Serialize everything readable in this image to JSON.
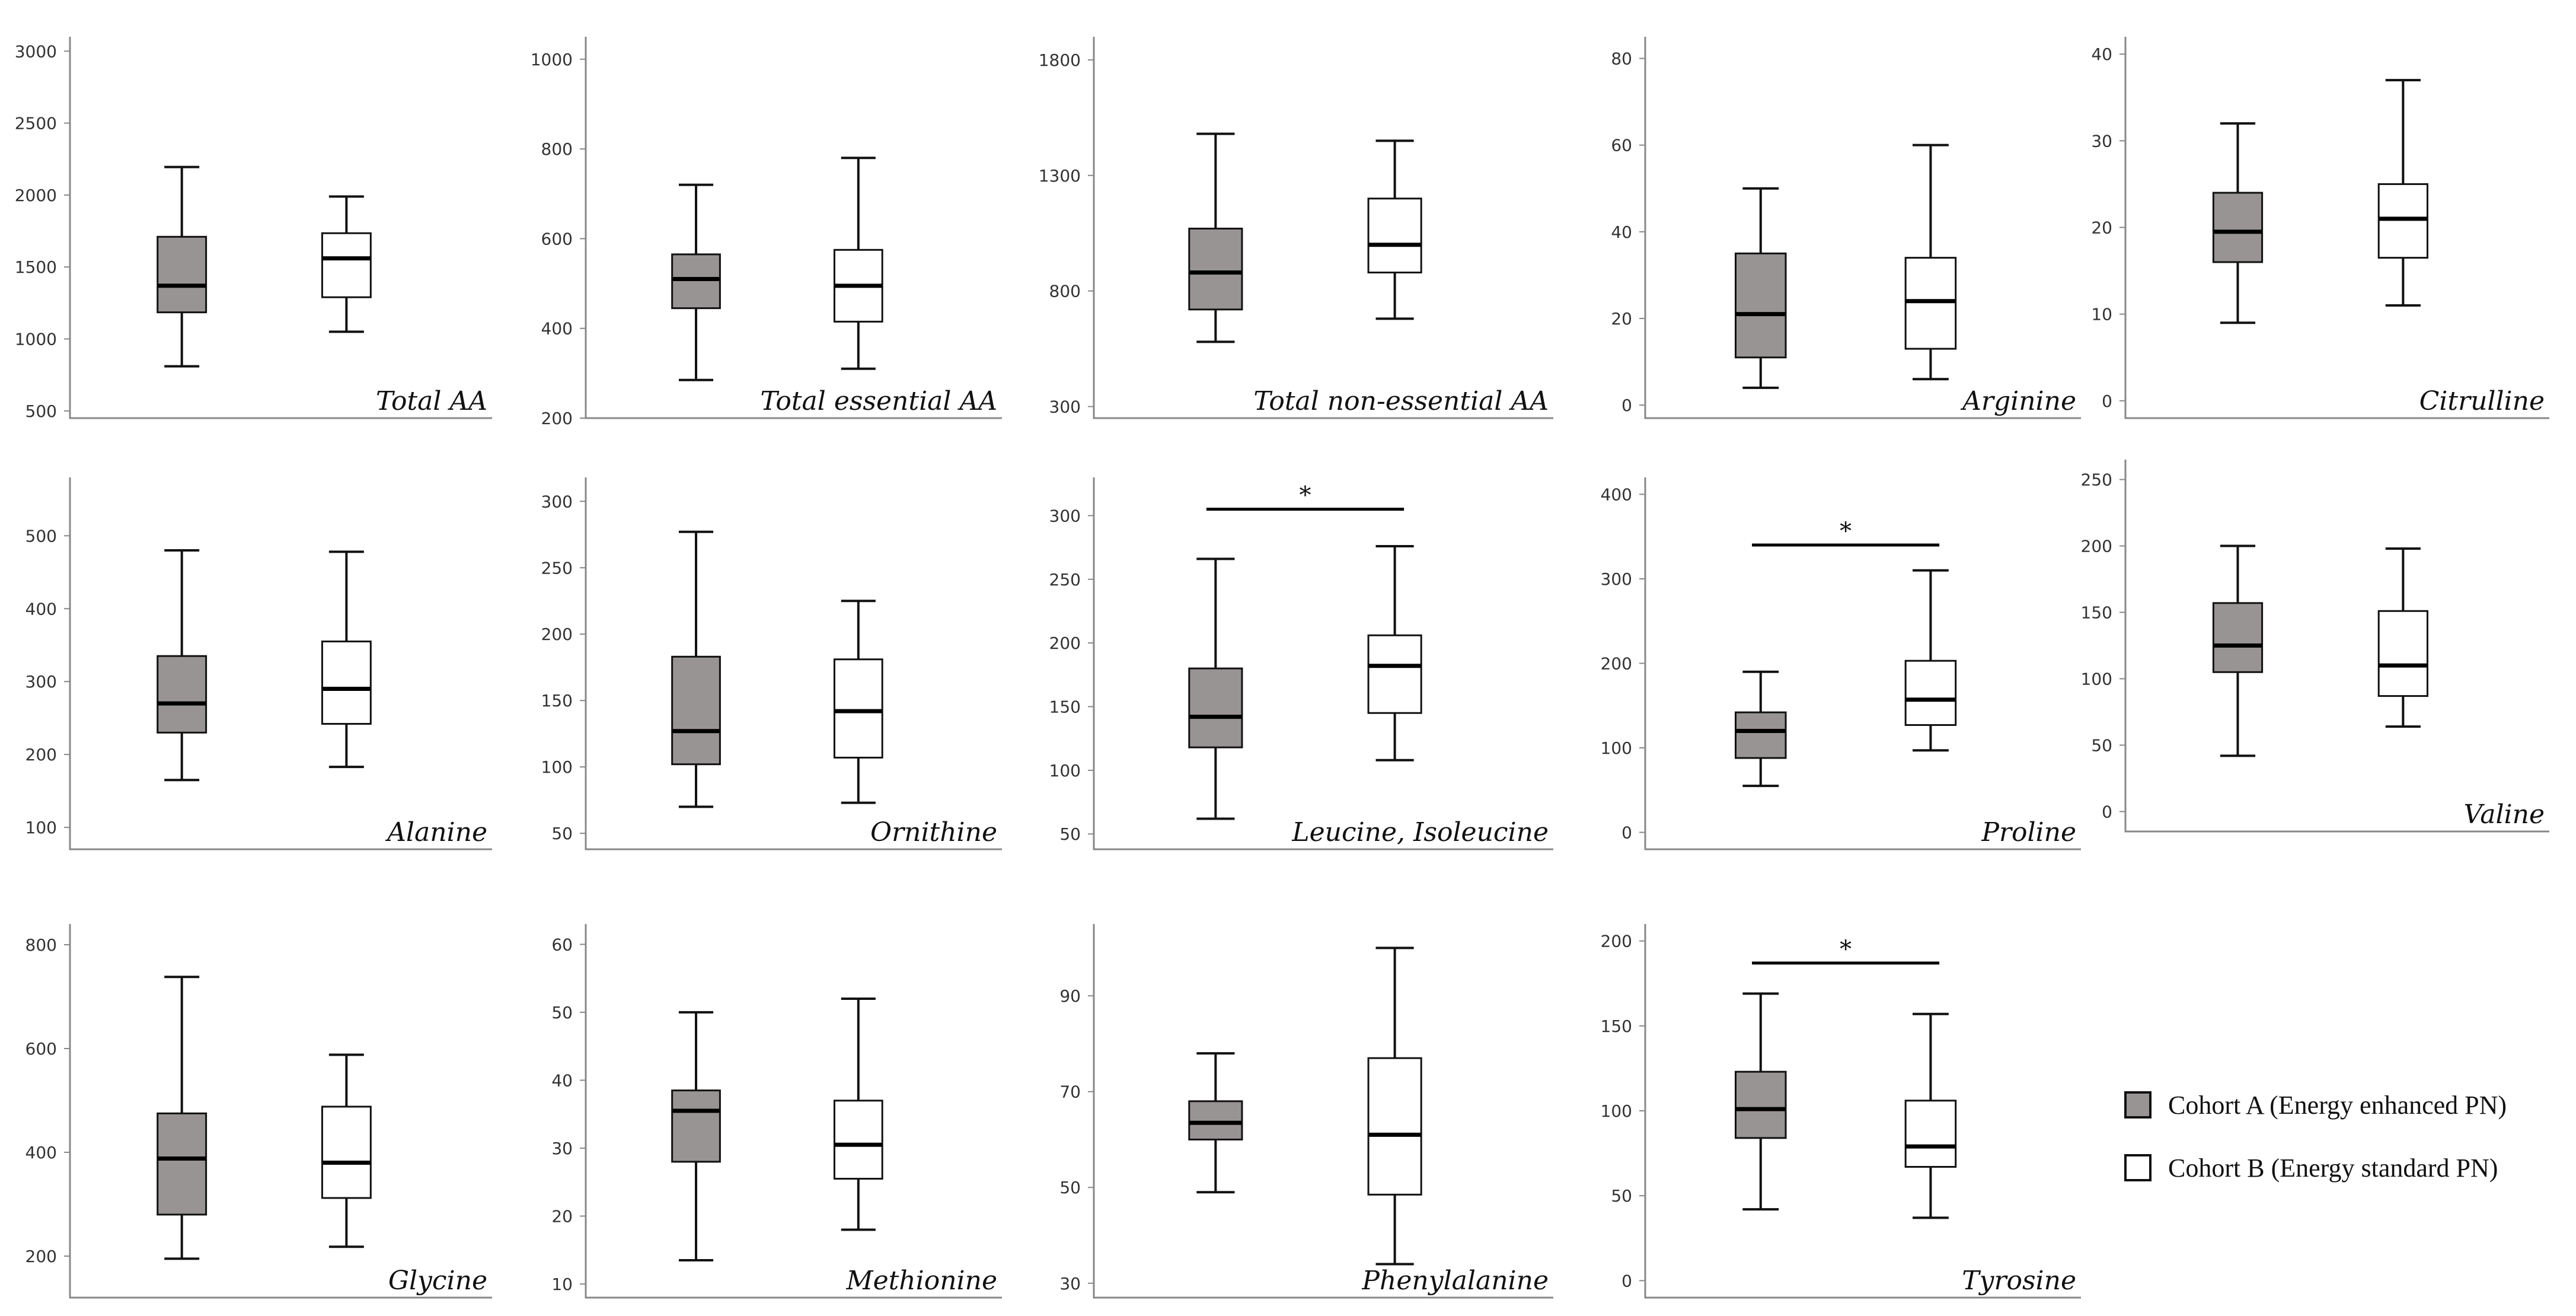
{
  "legend": {
    "items": [
      {
        "label": "Cohort A (Energy enhanced PN)",
        "color": "#999494"
      },
      {
        "label": "Cohort B (Energy standard  PN)",
        "color": "#ffffff"
      }
    ]
  },
  "colors": {
    "cohort_a": "#999494",
    "cohort_b": "#ffffff"
  },
  "chart_data": [
    {
      "type": "boxplot",
      "title": "Total AA",
      "ylim": [
        450,
        3100
      ],
      "ticks": [
        500,
        1000,
        1500,
        2000,
        2500,
        3000
      ],
      "tick_labels": [
        "500",
        "1000",
        "1500",
        "2000",
        "2500",
        "3000"
      ],
      "series": [
        {
          "name": "Cohort A (Energy enhanced PN)",
          "min": 810,
          "q1": 1185,
          "median": 1370,
          "q3": 1710,
          "max": 2195
        },
        {
          "name": "Cohort B (Energy standard  PN)",
          "min": 1050,
          "q1": 1290,
          "median": 1560,
          "q3": 1735,
          "max": 1990
        }
      ]
    },
    {
      "type": "boxplot",
      "title": "Total essential AA",
      "ylim": [
        200,
        1050
      ],
      "ticks": [
        200,
        400,
        600,
        800,
        1000
      ],
      "tick_labels": [
        "200",
        "400",
        "600",
        "800",
        "1000"
      ],
      "series": [
        {
          "name": "Cohort A (Energy enhanced PN)",
          "min": 285,
          "q1": 445,
          "median": 510,
          "q3": 565,
          "max": 720
        },
        {
          "name": "Cohort B (Energy standard  PN)",
          "min": 310,
          "q1": 415,
          "median": 495,
          "q3": 575,
          "max": 780
        }
      ]
    },
    {
      "type": "boxplot",
      "title": "Total non-essential AA",
      "ylim": [
        250,
        1900
      ],
      "ticks": [
        300,
        800,
        1300,
        1800
      ],
      "tick_labels": [
        "300",
        "800",
        "1300",
        "1800"
      ],
      "series": [
        {
          "name": "Cohort A (Energy enhanced PN)",
          "min": 580,
          "q1": 720,
          "median": 880,
          "q3": 1070,
          "max": 1480
        },
        {
          "name": "Cohort B (Energy standard  PN)",
          "min": 680,
          "q1": 880,
          "median": 1000,
          "q3": 1200,
          "max": 1450
        }
      ]
    },
    {
      "type": "boxplot",
      "title": "Arginine",
      "ylim": [
        -3,
        85
      ],
      "ticks": [
        0,
        20,
        40,
        60,
        80
      ],
      "tick_labels": [
        "0",
        "20",
        "40",
        "60",
        "80"
      ],
      "series": [
        {
          "name": "Cohort A (Energy enhanced PN)",
          "min": 4,
          "q1": 11,
          "median": 21,
          "q3": 35,
          "max": 50
        },
        {
          "name": "Cohort B (Energy standard  PN)",
          "min": 6,
          "q1": 13,
          "median": 24,
          "q3": 34,
          "max": 60
        }
      ]
    },
    {
      "type": "boxplot",
      "title": "Citrulline",
      "ylim": [
        -2,
        42
      ],
      "ticks": [
        0,
        10,
        20,
        30,
        40
      ],
      "tick_labels": [
        "0",
        "10",
        "20",
        "30",
        "40"
      ],
      "series": [
        {
          "name": "Cohort A (Energy enhanced PN)",
          "min": 9,
          "q1": 16,
          "median": 19.5,
          "q3": 24,
          "max": 32
        },
        {
          "name": "Cohort B (Energy standard  PN)",
          "min": 11,
          "q1": 16.5,
          "median": 21,
          "q3": 25,
          "max": 37
        }
      ]
    },
    {
      "type": "boxplot",
      "title": "Alanine",
      "ylim": [
        70,
        580
      ],
      "ticks": [
        100,
        200,
        300,
        400,
        500
      ],
      "tick_labels": [
        "100",
        "200",
        "300",
        "400",
        "500"
      ],
      "series": [
        {
          "name": "Cohort A (Energy enhanced PN)",
          "min": 165,
          "q1": 230,
          "median": 270,
          "q3": 335,
          "max": 480
        },
        {
          "name": "Cohort B (Energy standard  PN)",
          "min": 183,
          "q1": 242,
          "median": 290,
          "q3": 355,
          "max": 478
        }
      ]
    },
    {
      "type": "boxplot",
      "title": "Ornithine",
      "ylim": [
        38,
        318
      ],
      "ticks": [
        50,
        100,
        150,
        200,
        250,
        300
      ],
      "tick_labels": [
        "50",
        "100",
        "150",
        "200",
        "250",
        "300"
      ],
      "series": [
        {
          "name": "Cohort A (Energy enhanced PN)",
          "min": 70,
          "q1": 102,
          "median": 127,
          "q3": 183,
          "max": 277
        },
        {
          "name": "Cohort B (Energy standard  PN)",
          "min": 73,
          "q1": 107,
          "median": 142,
          "q3": 181,
          "max": 225
        }
      ]
    },
    {
      "type": "boxplot",
      "title": "Leucine, Isoleucine",
      "ylim": [
        38,
        330
      ],
      "ticks": [
        50,
        100,
        150,
        200,
        250,
        300
      ],
      "tick_labels": [
        "50",
        "100",
        "150",
        "200",
        "250",
        "300"
      ],
      "significance": {
        "label": "*",
        "y": 305
      },
      "series": [
        {
          "name": "Cohort A (Energy enhanced PN)",
          "min": 62,
          "q1": 118,
          "median": 142,
          "q3": 180,
          "max": 266
        },
        {
          "name": "Cohort B (Energy standard  PN)",
          "min": 108,
          "q1": 145,
          "median": 182,
          "q3": 206,
          "max": 276
        }
      ]
    },
    {
      "type": "boxplot",
      "title": "Proline",
      "ylim": [
        -20,
        420
      ],
      "ticks": [
        0,
        100,
        200,
        300,
        400
      ],
      "tick_labels": [
        "0",
        "100",
        "200",
        "300",
        "400"
      ],
      "significance": {
        "label": "*",
        "y": 340
      },
      "series": [
        {
          "name": "Cohort A (Energy enhanced PN)",
          "min": 55,
          "q1": 88,
          "median": 120,
          "q3": 142,
          "max": 190
        },
        {
          "name": "Cohort B (Energy standard  PN)",
          "min": 97,
          "q1": 127,
          "median": 157,
          "q3": 203,
          "max": 310
        }
      ]
    },
    {
      "type": "boxplot",
      "title": "Valine",
      "ylim": [
        -15,
        265
      ],
      "ticks": [
        0,
        50,
        100,
        150,
        200,
        250
      ],
      "tick_labels": [
        "0",
        "50",
        "100",
        "150",
        "200",
        "250"
      ],
      "series": [
        {
          "name": "Cohort A (Energy enhanced PN)",
          "min": 42,
          "q1": 105,
          "median": 125,
          "q3": 157,
          "max": 200
        },
        {
          "name": "Cohort B (Energy standard  PN)",
          "min": 64,
          "q1": 87,
          "median": 110,
          "q3": 151,
          "max": 198
        }
      ]
    },
    {
      "type": "boxplot",
      "title": "Glycine",
      "ylim": [
        120,
        840
      ],
      "ticks": [
        200,
        400,
        600,
        800
      ],
      "tick_labels": [
        "200",
        "400",
        "600",
        "800"
      ],
      "series": [
        {
          "name": "Cohort A (Energy enhanced PN)",
          "min": 195,
          "q1": 280,
          "median": 388,
          "q3": 475,
          "max": 738
        },
        {
          "name": "Cohort B (Energy standard  PN)",
          "min": 218,
          "q1": 312,
          "median": 380,
          "q3": 488,
          "max": 588
        }
      ]
    },
    {
      "type": "boxplot",
      "title": "Methionine",
      "ylim": [
        8,
        63
      ],
      "ticks": [
        10,
        20,
        30,
        40,
        50,
        60
      ],
      "tick_labels": [
        "10",
        "20",
        "30",
        "40",
        "50",
        "60"
      ],
      "series": [
        {
          "name": "Cohort A (Energy enhanced PN)",
          "min": 13.5,
          "q1": 28,
          "median": 35.5,
          "q3": 38.5,
          "max": 50
        },
        {
          "name": "Cohort B (Energy standard  PN)",
          "min": 18,
          "q1": 25.5,
          "median": 30.5,
          "q3": 37,
          "max": 52
        }
      ]
    },
    {
      "type": "boxplot",
      "title": "Phenylalanine",
      "ylim": [
        27,
        105
      ],
      "ticks": [
        30,
        50,
        70,
        90
      ],
      "tick_labels": [
        "30",
        "50",
        "70",
        "90"
      ],
      "series": [
        {
          "name": "Cohort A (Energy enhanced PN)",
          "min": 49,
          "q1": 60,
          "median": 63.5,
          "q3": 68,
          "max": 78
        },
        {
          "name": "Cohort B (Energy standard  PN)",
          "min": 34,
          "q1": 48.5,
          "median": 61,
          "q3": 77,
          "max": 100
        }
      ]
    },
    {
      "type": "boxplot",
      "title": "Tyrosine",
      "ylim": [
        -10,
        210
      ],
      "ticks": [
        0,
        50,
        100,
        150,
        200
      ],
      "tick_labels": [
        "0",
        "50",
        "100",
        "150",
        "200"
      ],
      "significance": {
        "label": "*",
        "y": 187
      },
      "series": [
        {
          "name": "Cohort A (Energy enhanced PN)",
          "min": 42,
          "q1": 84,
          "median": 101,
          "q3": 123,
          "max": 169
        },
        {
          "name": "Cohort B (Energy standard  PN)",
          "min": 37,
          "q1": 67,
          "median": 79,
          "q3": 106,
          "max": 157
        }
      ]
    }
  ]
}
